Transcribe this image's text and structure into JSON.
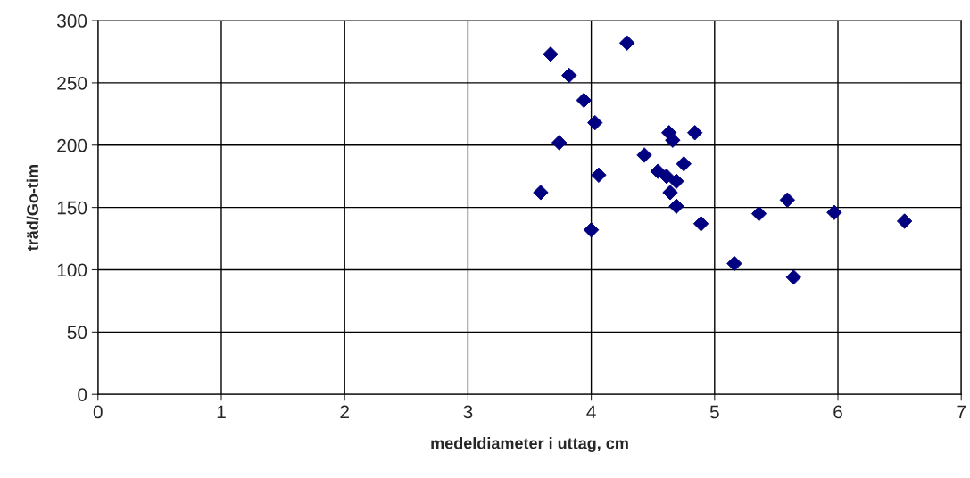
{
  "chart_data": {
    "type": "scatter",
    "xlabel": "medeldiameter i uttag, cm",
    "ylabel": "träd/Go-tim",
    "x": [
      3.59,
      3.67,
      3.74,
      3.82,
      3.94,
      4.0,
      4.03,
      4.06,
      4.29,
      4.43,
      4.54,
      4.61,
      4.63,
      4.66,
      4.64,
      4.69,
      4.69,
      4.75,
      4.84,
      4.89,
      5.16,
      5.36,
      5.59,
      5.64,
      5.97,
      6.54
    ],
    "values": [
      162,
      273,
      202,
      256,
      236,
      132,
      218,
      176,
      282,
      192,
      179,
      175,
      210,
      204,
      162,
      151,
      171,
      185,
      210,
      137,
      105,
      145,
      156,
      94,
      146,
      139
    ],
    "color": "#000080",
    "marker": "diamond",
    "grid": true,
    "xlim": [
      0,
      7
    ],
    "xticks": [
      0,
      1,
      2,
      3,
      4,
      5,
      6,
      7
    ],
    "ylim": [
      0,
      300
    ],
    "yticks": [
      0,
      50,
      100,
      150,
      200,
      250,
      300
    ]
  }
}
